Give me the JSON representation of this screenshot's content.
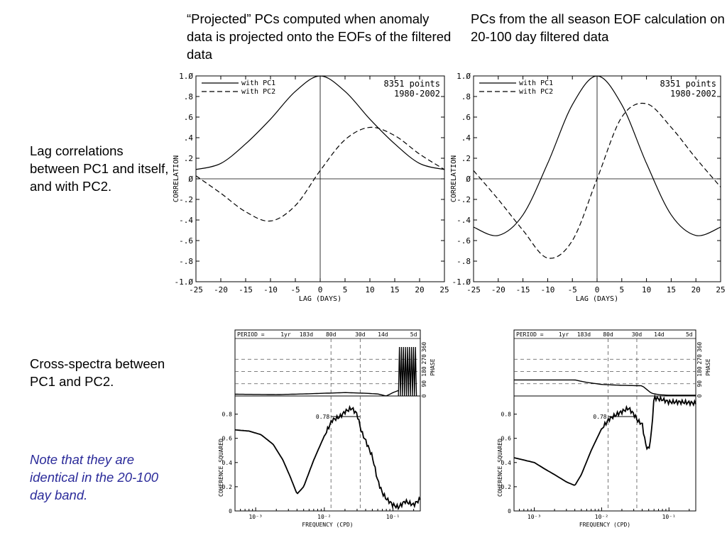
{
  "slide": {
    "left_title": "“Projected” PCs computed when anomaly data is projected onto the EOFs of the filtered data",
    "right_title": "PCs from the all season EOF calculation on 20-100 day filtered data",
    "row1_label": "Lag correlations between PC1 and itself, and with PC2.",
    "row2_label": "Cross-spectra between PC1 and PC2.",
    "note": "Note that they are identical in the 20-100 day band."
  },
  "chart_data": [
    {
      "id": "lag-left",
      "type": "line",
      "xlabel": "LAG (DAYS)",
      "ylabel": "CORRELATION",
      "xlim": [
        -25,
        25
      ],
      "ylim": [
        -1.0,
        1.0
      ],
      "x_ticks": [
        "-25",
        "-20",
        "-15",
        "-10",
        "-5",
        "0",
        "5",
        "10",
        "15",
        "20",
        "25"
      ],
      "y_ticks": [
        "1.Ø",
        ".8",
        ".6",
        ".4",
        ".2",
        "Ø",
        "-.2",
        "-.4",
        "-.6",
        "-.8",
        "-1.Ø"
      ],
      "annotation": [
        "8351 points",
        "1980-2002"
      ],
      "series": [
        {
          "name": "with PC1",
          "style": "solid",
          "x": [
            -25,
            -20,
            -15,
            -10,
            -5,
            0,
            5,
            10,
            15,
            20,
            25
          ],
          "y": [
            0.09,
            0.15,
            0.34,
            0.58,
            0.85,
            1.0,
            0.85,
            0.58,
            0.34,
            0.15,
            0.09
          ]
        },
        {
          "name": "with PC2",
          "style": "dashed",
          "x": [
            -25,
            -20,
            -15,
            -10,
            -5,
            0,
            5,
            10,
            15,
            20,
            25
          ],
          "y": [
            0.03,
            -0.14,
            -0.32,
            -0.41,
            -0.26,
            0.08,
            0.38,
            0.5,
            0.42,
            0.24,
            0.09
          ]
        }
      ]
    },
    {
      "id": "lag-right",
      "type": "line",
      "xlabel": "LAG (DAYS)",
      "ylabel": "CORRELATION",
      "xlim": [
        -25,
        25
      ],
      "ylim": [
        -1.0,
        1.0
      ],
      "x_ticks": [
        "-25",
        "-20",
        "-15",
        "-10",
        "-5",
        "0",
        "5",
        "10",
        "15",
        "20",
        "25"
      ],
      "y_ticks": [
        "1.Ø",
        ".8",
        ".6",
        ".4",
        ".2",
        "Ø",
        "-.2",
        "-.4",
        "-.6",
        "-.8",
        "-1.Ø"
      ],
      "annotation": [
        "8351 points",
        "1980-2002"
      ],
      "series": [
        {
          "name": "with PC1",
          "style": "solid",
          "x": [
            -25,
            -20,
            -15,
            -10,
            -5,
            0,
            5,
            10,
            15,
            20,
            25
          ],
          "y": [
            -0.47,
            -0.55,
            -0.35,
            0.15,
            0.72,
            1.0,
            0.72,
            0.15,
            -0.35,
            -0.55,
            -0.47
          ]
        },
        {
          "name": "with PC2",
          "style": "dashed",
          "x": [
            -25,
            -20,
            -15,
            -10,
            -5,
            0,
            5,
            10,
            15,
            20,
            25
          ],
          "y": [
            0.08,
            -0.2,
            -0.5,
            -0.77,
            -0.6,
            0.0,
            0.6,
            0.73,
            0.5,
            0.2,
            -0.08
          ]
        }
      ]
    },
    {
      "id": "spec-left",
      "type": "line",
      "xlabel": "FREQUENCY (CPD)",
      "coherence_label": "COHERENCE SQUARED",
      "phase_label": "PHASE",
      "period_label": "PERIOD =",
      "period_ticks": [
        {
          "label": "1yr",
          "freq": 0.00274
        },
        {
          "label": "183d",
          "freq": 0.00546
        },
        {
          "label": "80d",
          "freq": 0.0125
        },
        {
          "label": "30d",
          "freq": 0.0333
        },
        {
          "label": "14d",
          "freq": 0.0714
        },
        {
          "label": "5d",
          "freq": 0.2
        }
      ],
      "phase_ticks": [
        "0",
        "90",
        "180",
        "270",
        "360"
      ],
      "coh_ticks": [
        "0",
        "0.2",
        "0.4",
        "0.6",
        "0.8"
      ],
      "freq_ticks": [
        {
          "label": "10⁻³",
          "freq": 0.001
        },
        {
          "label": "10⁻²",
          "freq": 0.01
        },
        {
          "label": "10⁻¹",
          "freq": 0.1
        }
      ],
      "xlim": [
        0.0005,
        0.25
      ],
      "coh_ylim": [
        0,
        0.95
      ],
      "threshold": {
        "label": "0.78",
        "value": 0.78,
        "x_range": [
          0.0125,
          0.0333
        ]
      },
      "coherence": {
        "freq": [
          0.0005,
          0.0008,
          0.0012,
          0.0018,
          0.0025,
          0.0032,
          0.004,
          0.005,
          0.007,
          0.01,
          0.013,
          0.017,
          0.02,
          0.025,
          0.03,
          0.035,
          0.04,
          0.05,
          0.06,
          0.07,
          0.08,
          0.1,
          0.12,
          0.15,
          0.2,
          0.25
        ],
        "value": [
          0.67,
          0.66,
          0.63,
          0.55,
          0.42,
          0.28,
          0.14,
          0.2,
          0.42,
          0.62,
          0.75,
          0.78,
          0.82,
          0.85,
          0.8,
          0.65,
          0.58,
          0.45,
          0.25,
          0.15,
          0.1,
          0.05,
          0.03,
          0.08,
          0.05,
          0.1
        ]
      },
      "phase": {
        "freq": [
          0.0005,
          0.002,
          0.005,
          0.01,
          0.02,
          0.04,
          0.06,
          0.08,
          0.1,
          0.12
        ],
        "value": [
          13,
          10,
          15,
          20,
          25,
          20,
          15,
          0,
          25,
          40
        ]
      },
      "phase_noise": {
        "freq_range": [
          0.12,
          0.22
        ],
        "low": 0,
        "high": 360
      }
    },
    {
      "id": "spec-right",
      "type": "line",
      "xlabel": "FREQUENCY (CPD)",
      "coherence_label": "COHERENCE SQUARED",
      "phase_label": "PHASE",
      "period_label": "PERIOD =",
      "period_ticks": [
        {
          "label": "1yr",
          "freq": 0.00274
        },
        {
          "label": "183d",
          "freq": 0.00546
        },
        {
          "label": "80d",
          "freq": 0.0125
        },
        {
          "label": "30d",
          "freq": 0.0333
        },
        {
          "label": "14d",
          "freq": 0.0714
        },
        {
          "label": "5d",
          "freq": 0.2
        }
      ],
      "phase_ticks": [
        "0",
        "90",
        "180",
        "270",
        "360"
      ],
      "coh_ticks": [
        "0",
        "0.2",
        "0.4",
        "0.6",
        "0.8"
      ],
      "freq_ticks": [
        {
          "label": "10⁻³",
          "freq": 0.001
        },
        {
          "label": "10⁻²",
          "freq": 0.01
        },
        {
          "label": "10⁻¹",
          "freq": 0.1
        }
      ],
      "xlim": [
        0.0005,
        0.25
      ],
      "coh_ylim": [
        0,
        0.95
      ],
      "threshold": {
        "label": "0.78",
        "value": 0.78,
        "x_range": [
          0.0125,
          0.0333
        ]
      },
      "coherence": {
        "freq": [
          0.0005,
          0.001,
          0.0015,
          0.002,
          0.003,
          0.004,
          0.005,
          0.007,
          0.01,
          0.013,
          0.017,
          0.02,
          0.025,
          0.03,
          0.035,
          0.04,
          0.045,
          0.05,
          0.055,
          0.06,
          0.065,
          0.08,
          0.1,
          0.15,
          0.25
        ],
        "value": [
          0.44,
          0.4,
          0.34,
          0.3,
          0.24,
          0.21,
          0.3,
          0.5,
          0.68,
          0.76,
          0.8,
          0.82,
          0.85,
          0.8,
          0.74,
          0.72,
          0.55,
          0.5,
          0.65,
          0.94,
          0.93,
          0.92,
          0.9,
          0.9,
          0.89
        ]
      },
      "phase": {
        "freq": [
          0.0005,
          0.004,
          0.006,
          0.01,
          0.02,
          0.04,
          0.055,
          0.07,
          0.1,
          0.2,
          0.25
        ],
        "value": [
          118,
          118,
          100,
          85,
          78,
          75,
          20,
          10,
          5,
          5,
          5
        ]
      }
    }
  ]
}
